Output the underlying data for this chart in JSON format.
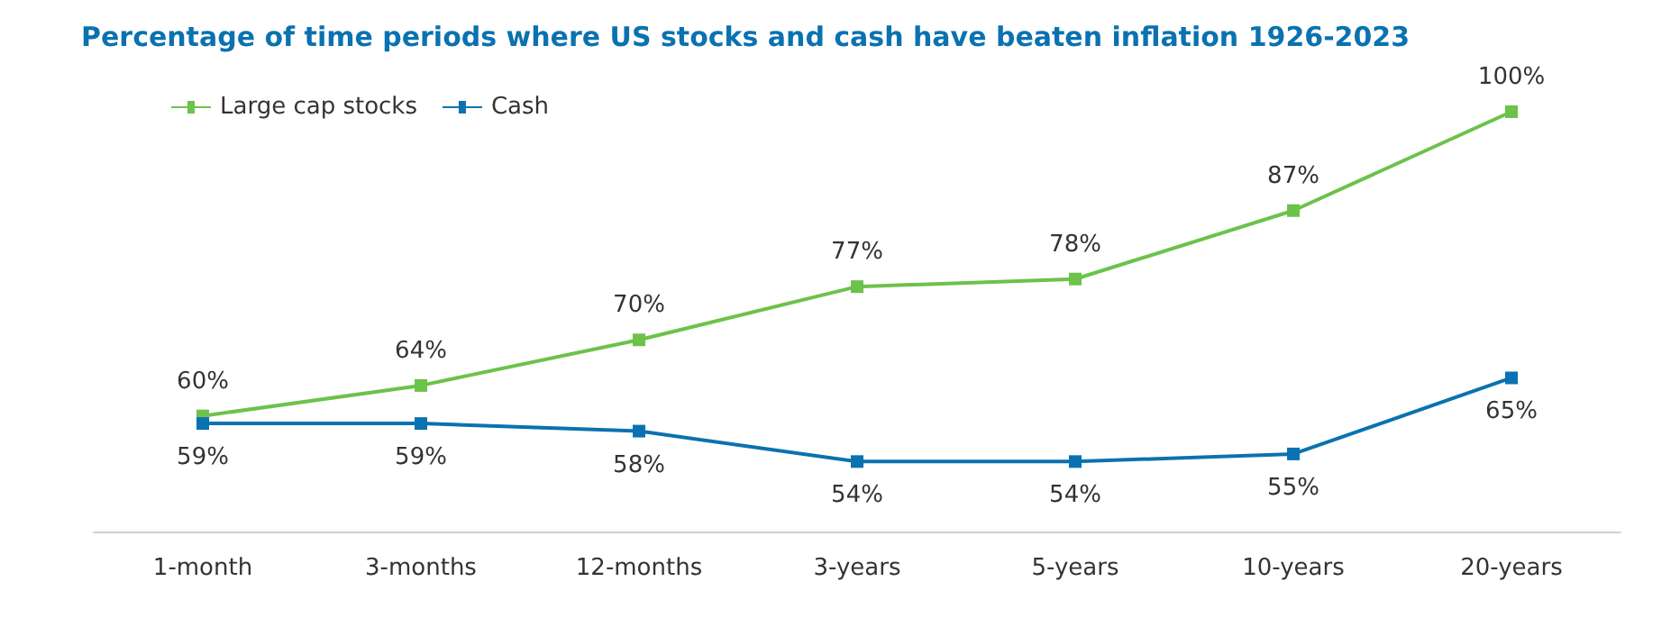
{
  "chart_data": {
    "type": "line",
    "title": "Percentage of time periods where US stocks and cash have beaten inflation 1926-2023",
    "categories": [
      "1-month",
      "3-months",
      "12-months",
      "3-years",
      "5-years",
      "10-years",
      "20-years"
    ],
    "series": [
      {
        "name": "Large cap stocks",
        "color": "#6cc24a",
        "values": [
          60,
          64,
          70,
          77,
          78,
          87,
          100
        ],
        "value_labels": [
          "60%",
          "64%",
          "70%",
          "77%",
          "78%",
          "87%",
          "100%"
        ]
      },
      {
        "name": "Cash",
        "color": "#0a72b0",
        "values": [
          59,
          59,
          58,
          54,
          54,
          55,
          65
        ],
        "value_labels": [
          "59%",
          "59%",
          "58%",
          "54%",
          "54%",
          "55%",
          "65%"
        ]
      }
    ],
    "tick_labels": "x",
    "legend": "top left",
    "marker": "square",
    "line_style": "solid",
    "grid": false
  }
}
